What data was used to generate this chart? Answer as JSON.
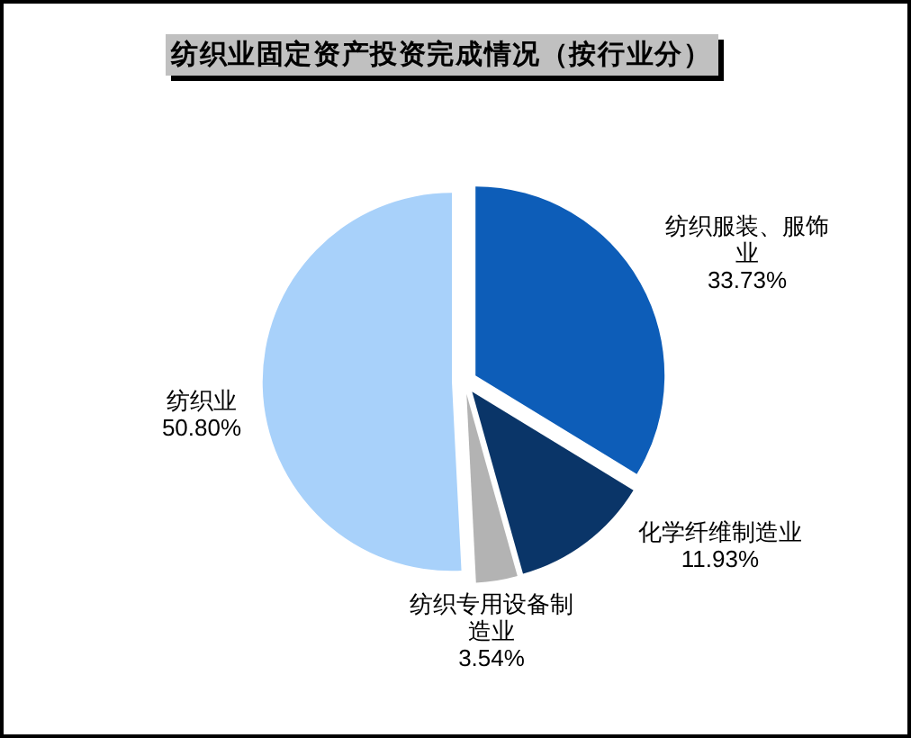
{
  "chart_data": {
    "type": "pie",
    "title": "纺织业固定资产投资完成情况（按行业分）",
    "categories": [
      "纺织服装、服饰业",
      "化学纤维制造业",
      "纺织专用设备制造业",
      "纺织业"
    ],
    "values": [
      33.73,
      11.93,
      3.54,
      50.8
    ],
    "colors": [
      "#0d5db8",
      "#0a3568",
      "#b3b3b3",
      "#a8d1fa"
    ],
    "value_labels": [
      "33.73%",
      "11.93%",
      "3.54%",
      "50.80%"
    ]
  }
}
